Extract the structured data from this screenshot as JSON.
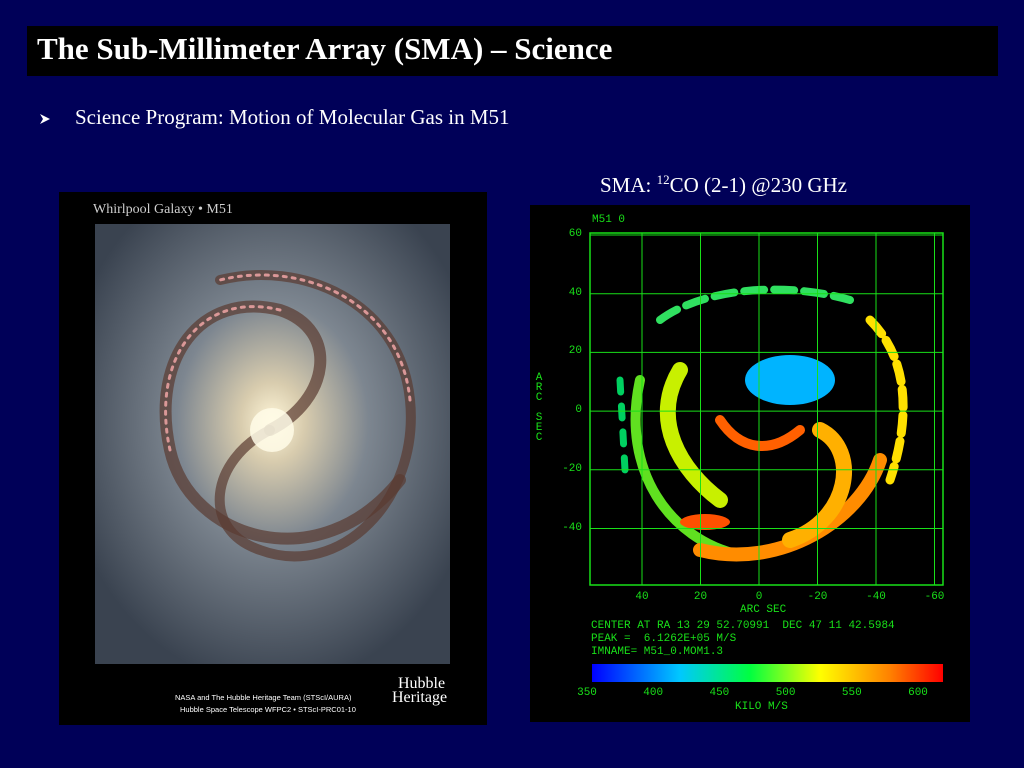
{
  "header": {
    "title": "The Sub-Millimeter Array (SMA) – Science"
  },
  "bullets": [
    "Science Program: Motion of Molecular Gas in M51"
  ],
  "caption": {
    "prefix": "SMA: ",
    "superscript": "12",
    "suffix": "CO (2-1) @230 GHz"
  },
  "photo": {
    "title": "Whirlpool Galaxy • M51",
    "logo": [
      "Hubble",
      "Heritage"
    ],
    "credits": [
      "NASA and The Hubble Heritage Team (STScI/AURA)",
      "Hubble Space Telescope WFPC2 • STScI-PRC01-10"
    ]
  },
  "map": {
    "label": "M51 0",
    "y_axis_label": "ARC SEC",
    "x_axis_label": "ARC SEC",
    "y_ticks": [
      "60",
      "40",
      "20",
      "0",
      "-20",
      "-40"
    ],
    "x_ticks": [
      "40",
      "20",
      "0",
      "-20",
      "-40",
      "-60"
    ],
    "info": [
      "CENTER AT RA 13 29 52.70991  DEC 47 11 42.5984",
      "PEAK =  6.1262E+05 M/S",
      "IMNAME= M51_0.MOM1.3"
    ],
    "colorbar_ticks": [
      "350",
      "400",
      "450",
      "500",
      "550",
      "600"
    ],
    "colorbar_label": "KILO M/S"
  }
}
